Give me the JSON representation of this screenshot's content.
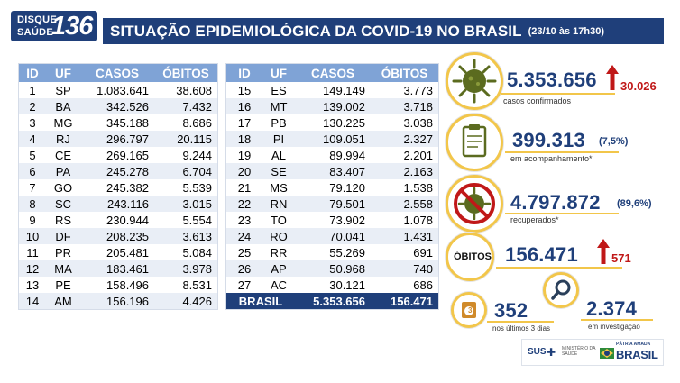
{
  "logo": {
    "line1": "DISQUE",
    "line2": "SAÚDE",
    "number": "136"
  },
  "header": {
    "title": "SITUAÇÃO EPIDEMIOLÓGICA DA COVID-19 NO BRASIL",
    "date": "(23/10 às 17h30)"
  },
  "table": {
    "columns": [
      "ID",
      "UF",
      "CASOS",
      "ÓBITOS"
    ],
    "left_rows": [
      [
        "1",
        "SP",
        "1.083.641",
        "38.608"
      ],
      [
        "2",
        "BA",
        "342.526",
        "7.432"
      ],
      [
        "3",
        "MG",
        "345.188",
        "8.686"
      ],
      [
        "4",
        "RJ",
        "296.797",
        "20.115"
      ],
      [
        "5",
        "CE",
        "269.165",
        "9.244"
      ],
      [
        "6",
        "PA",
        "245.278",
        "6.704"
      ],
      [
        "7",
        "GO",
        "245.382",
        "5.539"
      ],
      [
        "8",
        "SC",
        "243.116",
        "3.015"
      ],
      [
        "9",
        "RS",
        "230.944",
        "5.554"
      ],
      [
        "10",
        "DF",
        "208.235",
        "3.613"
      ],
      [
        "11",
        "PR",
        "205.481",
        "5.084"
      ],
      [
        "12",
        "MA",
        "183.461",
        "3.978"
      ],
      [
        "13",
        "PE",
        "158.496",
        "8.531"
      ],
      [
        "14",
        "AM",
        "156.196",
        "4.426"
      ]
    ],
    "right_rows": [
      [
        "15",
        "ES",
        "149.149",
        "3.773"
      ],
      [
        "16",
        "MT",
        "139.002",
        "3.718"
      ],
      [
        "17",
        "PB",
        "130.225",
        "3.038"
      ],
      [
        "18",
        "PI",
        "109.051",
        "2.327"
      ],
      [
        "19",
        "AL",
        "89.994",
        "2.201"
      ],
      [
        "20",
        "SE",
        "83.407",
        "2.163"
      ],
      [
        "21",
        "MS",
        "79.120",
        "1.538"
      ],
      [
        "22",
        "RN",
        "79.501",
        "2.558"
      ],
      [
        "23",
        "TO",
        "73.902",
        "1.078"
      ],
      [
        "24",
        "RO",
        "70.041",
        "1.431"
      ],
      [
        "25",
        "RR",
        "55.269",
        "691"
      ],
      [
        "26",
        "AP",
        "50.968",
        "740"
      ],
      [
        "27",
        "AC",
        "30.121",
        "686"
      ]
    ],
    "total": {
      "label": "BRASIL",
      "casos": "5.353.656",
      "obitos": "156.471"
    }
  },
  "stats": {
    "confirmed": {
      "value": "5.353.656",
      "delta": "30.026",
      "caption": "casos confirmados",
      "icon": "virus-icon"
    },
    "monitoring": {
      "value": "399.313",
      "pct": "(7,5%)",
      "caption": "em acompanhamento*",
      "icon": "clipboard-icon"
    },
    "recovered": {
      "value": "4.797.872",
      "pct": "(89,6%)",
      "caption": "recuperados*",
      "icon": "no-virus-icon"
    },
    "deaths": {
      "label": "ÓBITOS",
      "value": "156.471",
      "delta": "571"
    },
    "recent": {
      "value": "352",
      "caption": "nos últimos 3 dias",
      "badge": "3",
      "icon": "calendar-icon"
    },
    "investigation": {
      "value": "2.374",
      "caption": "em investigação",
      "icon": "magnifier-icon"
    }
  },
  "footer": {
    "sus": "SUS",
    "ministerio": "MINISTÉRIO DA SAÚDE",
    "patria": "PÁTRIA AMADA",
    "brasil": "BRASIL"
  },
  "colors": {
    "navy": "#1f3f7a",
    "header_blue": "#7fa3d6",
    "gold": "#f2c64a",
    "alert_red": "#c01818"
  }
}
